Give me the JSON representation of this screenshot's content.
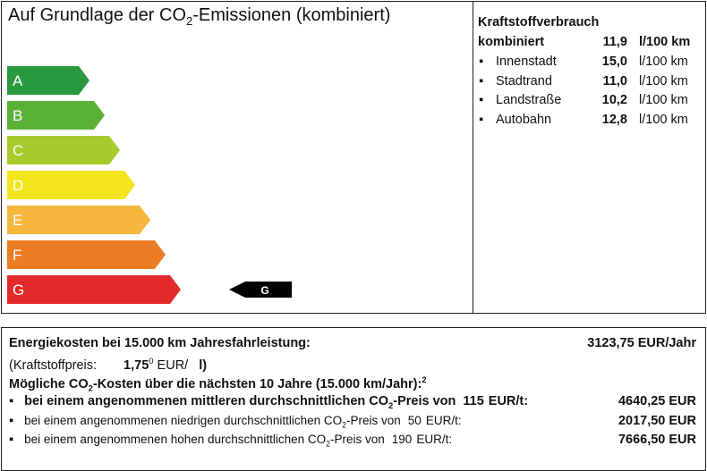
{
  "header": {
    "title_parts": [
      "Auf Grundlage der CO",
      "2",
      "-Emissionen (kombiniert)"
    ]
  },
  "efficiency": {
    "classes": [
      {
        "label": "A",
        "color": "#2a9a3e"
      },
      {
        "label": "B",
        "color": "#5bb135"
      },
      {
        "label": "C",
        "color": "#a8ca2a"
      },
      {
        "label": "D",
        "color": "#f2e51d"
      },
      {
        "label": "E",
        "color": "#f5b73c"
      },
      {
        "label": "F",
        "color": "#ee7c22"
      },
      {
        "label": "G",
        "color": "#e32a2b"
      }
    ],
    "current_class": "G"
  },
  "consumption": {
    "title": "Kraftstoffverbrauch",
    "combined": {
      "label": "kombiniert",
      "value": "11,9",
      "unit": "l/100 km"
    },
    "rows": [
      {
        "label": "Innenstadt",
        "value": "15,0",
        "unit": "l/100 km"
      },
      {
        "label": "Stadtrand",
        "value": "11,0",
        "unit": "l/100 km"
      },
      {
        "label": "Landstraße",
        "value": "10,2",
        "unit": "l/100 km"
      },
      {
        "label": "Autobahn",
        "value": "12,8",
        "unit": "l/100 km"
      }
    ]
  },
  "costs": {
    "energy": {
      "label": "Energiekosten bei 15.000 km Jahresfahrleistung:",
      "value": "3123,75 EUR/Jahr"
    },
    "fuel_price": {
      "label": "(Kraftstoffpreis:",
      "value": "1,75",
      "sup": "0",
      "unit": "EUR/",
      "unit_end": "l)"
    },
    "co2_heading": [
      "Mögliche CO",
      "2",
      "-Kosten über die nächsten 10 Jahre (15.000 km/Jahr):",
      "2"
    ],
    "co2_rows": [
      {
        "text": [
          "bei einem angenommenen mittleren durchschnittlichen CO",
          "2",
          "-Preis von"
        ],
        "price": "115",
        "unit": "EUR/t:",
        "value": "4640,25 EUR",
        "bold": true
      },
      {
        "text": [
          "bei einem angenommenen niedrigen durchschnittlichen CO",
          "2",
          "-Preis von"
        ],
        "price": "50",
        "unit": "EUR/t:",
        "value": "2017,50 EUR",
        "bold": false
      },
      {
        "text": [
          "bei einem angenommenen hohen durchschnittlichen CO",
          "2",
          "-Preis von"
        ],
        "price": "190",
        "unit": "EUR/t:",
        "value": "7666,50 EUR",
        "bold": false
      }
    ]
  },
  "tax": null
}
